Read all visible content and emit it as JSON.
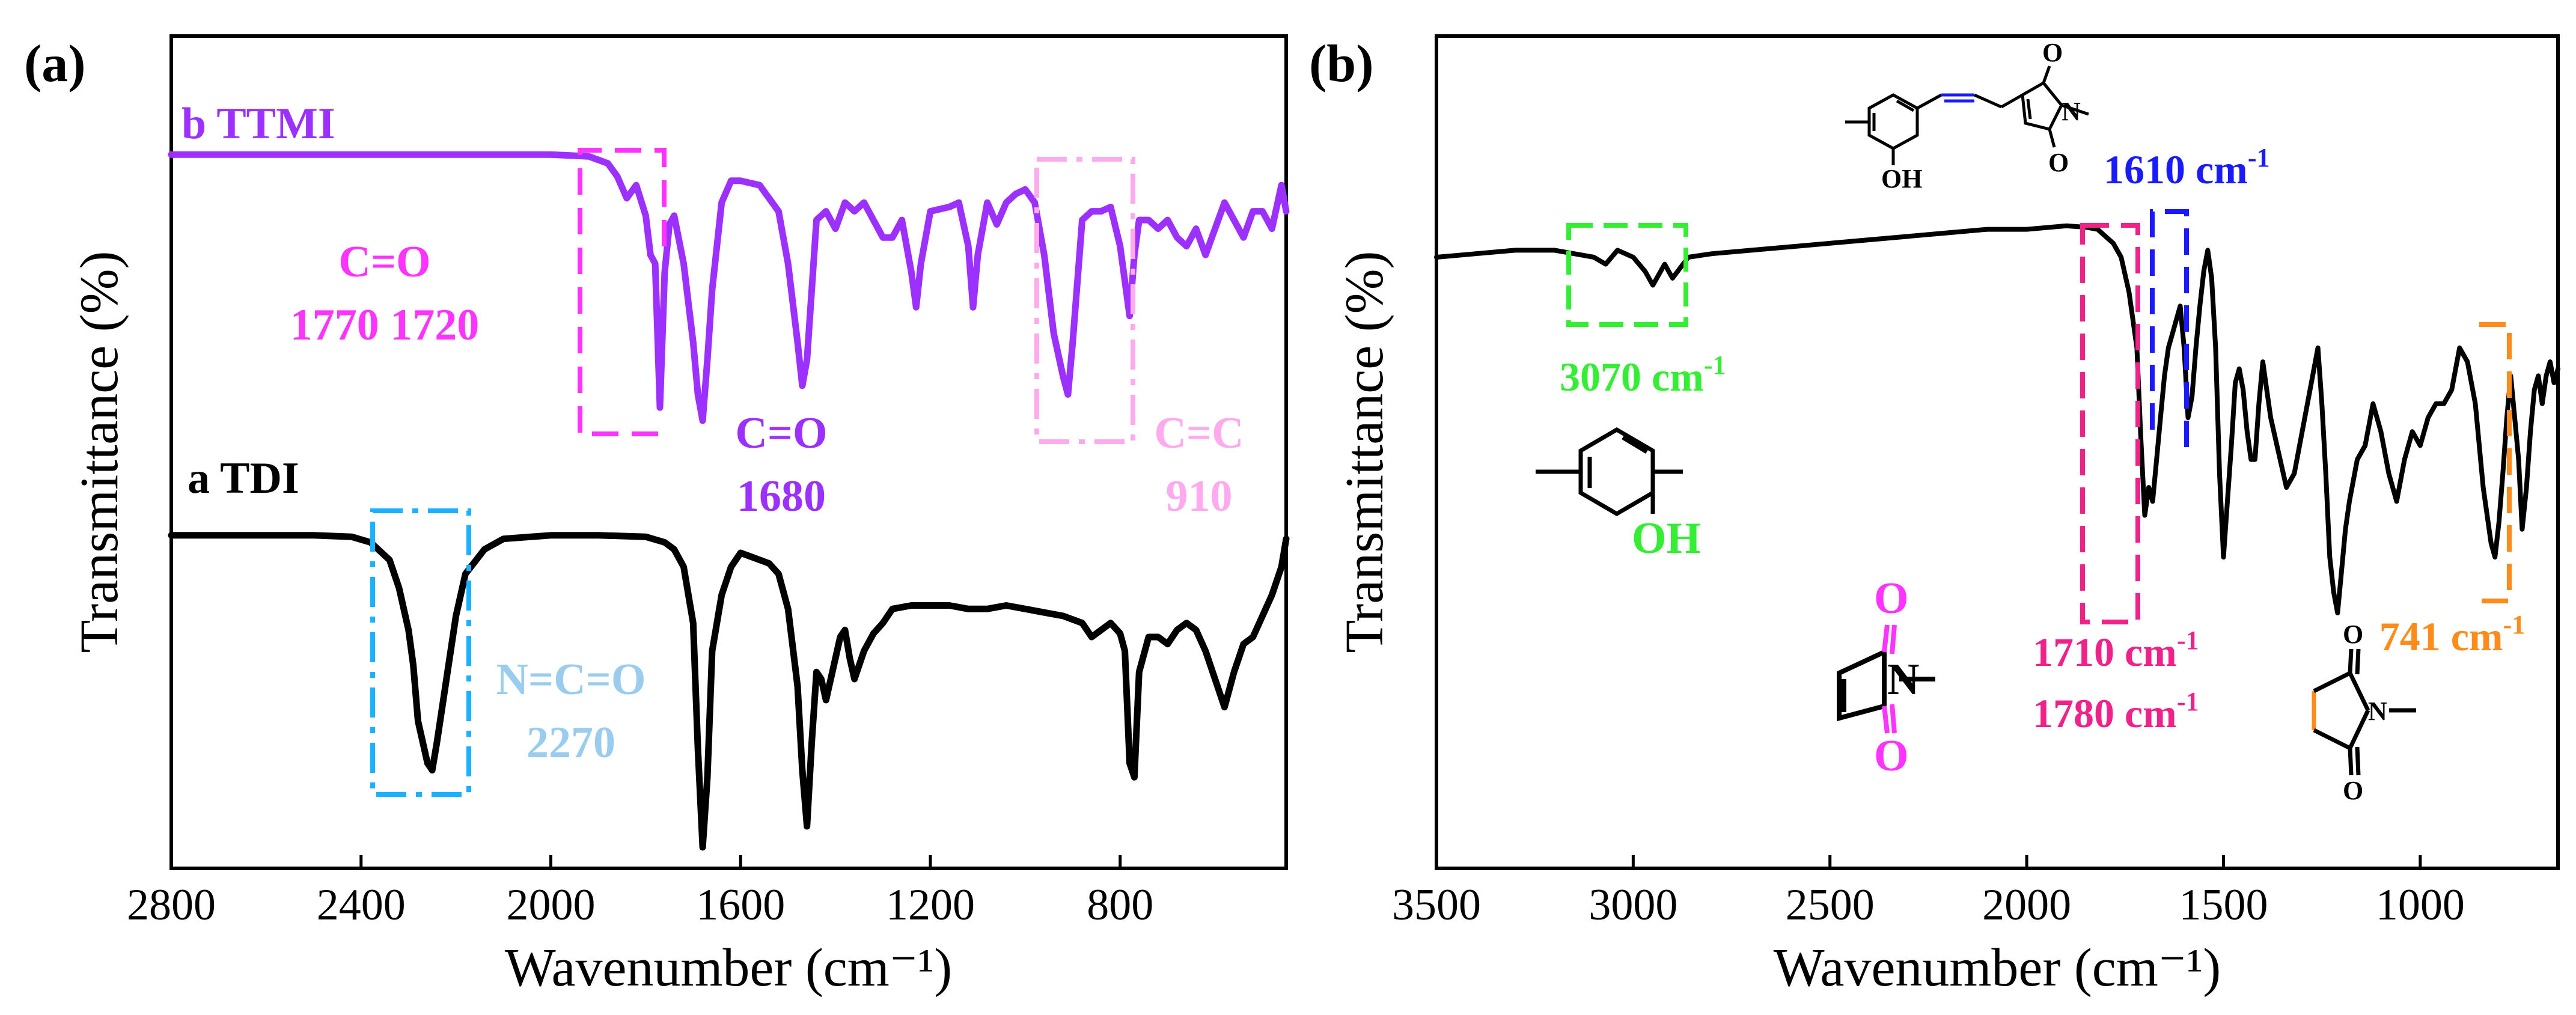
{
  "panels": {
    "a": {
      "label": "(a)",
      "ylabel": "Transmittance  (%)",
      "xlabel": "Wavenumber (cm⁻¹)"
    },
    "b": {
      "label": "(b)",
      "ylabel": "Transmittance  (%)",
      "xlabel": "Wavenumber (cm⁻¹)"
    }
  },
  "annotations_a": {
    "co_outer_1": "C=O",
    "co_outer_2": "1770 1720",
    "co_inner_1": "C=O",
    "co_inner_2": "1680",
    "cc_1": "C=C",
    "cc_2": "910",
    "nco_1": "N=C=O",
    "nco_2": "2270"
  },
  "annotations_b": {
    "peak_3070": "3070 cm",
    "peak_1610": "1610 cm",
    "peak_1710": "1710 cm",
    "peak_1780": "1780 cm",
    "peak_741": "741 cm",
    "superscript": "-1",
    "atom_o": "O",
    "atom_n": "N",
    "atom_oh": "OH"
  },
  "colors": {
    "ttmi": "#9b30ff",
    "tdi": "#000000",
    "magenta": "#ff33ff",
    "light_pink": "#ffaaee",
    "light_blue": "#99ccee",
    "cyan": "#1ab2ff",
    "green": "#33ee33",
    "blue": "#1a1aff",
    "hot_pink": "#ee2288",
    "orange": "#ff8c1a"
  },
  "chart_data": [
    {
      "type": "line",
      "panel": "a",
      "xlabel": "Wavenumber (cm⁻¹)",
      "ylabel": "Transmittance  (%)",
      "xlim": [
        2800,
        450
      ],
      "ylim": [
        0,
        100
      ],
      "xticks": [
        2800,
        2400,
        2000,
        1600,
        1200,
        800
      ],
      "series": [
        {
          "name": "b TTMI",
          "x": [
            2800,
            2000,
            1960,
            1920,
            1880,
            1860,
            1840,
            1820,
            1800,
            1790,
            1780,
            1770,
            1760,
            1750,
            1740,
            1720,
            1700,
            1690,
            1680,
            1670,
            1660,
            1640,
            1620,
            1600,
            1560,
            1520,
            1500,
            1480,
            1470,
            1460,
            1450,
            1440,
            1420,
            1400,
            1380,
            1360,
            1340,
            1300,
            1280,
            1260,
            1240,
            1230,
            1220,
            1200,
            1160,
            1140,
            1120,
            1110,
            1100,
            1080,
            1060,
            1040,
            1020,
            1000,
            980,
            960,
            940,
            920,
            910,
            900,
            880,
            860,
            840,
            820,
            800,
            790,
            780,
            770,
            760,
            740,
            720,
            700,
            680,
            660,
            640,
            620,
            600,
            580,
            560,
            540,
            520,
            500,
            480,
            460,
            450
          ],
          "values": [
            85.5,
            85.5,
            85.4,
            85.3,
            84.5,
            83,
            80.5,
            82,
            78.5,
            74,
            73,
            56.5,
            72,
            77.5,
            78.5,
            73,
            64,
            58,
            55,
            62,
            70,
            80,
            82.5,
            82.5,
            82,
            79,
            73,
            64,
            59,
            62,
            70,
            78,
            79,
            77,
            80,
            79,
            80,
            76,
            76,
            78,
            72,
            68,
            73,
            79,
            79.5,
            80,
            75,
            68,
            74,
            80,
            77.5,
            80,
            81,
            81.5,
            80,
            74,
            65,
            60,
            58,
            64,
            78,
            79,
            79,
            79.5,
            75,
            71,
            67,
            74,
            78,
            78,
            77,
            78,
            76,
            75,
            77,
            74,
            77,
            80,
            78,
            76,
            79,
            79,
            77,
            82,
            79
          ]
        },
        {
          "name": "a TDI",
          "x": [
            2800,
            2500,
            2420,
            2380,
            2340,
            2320,
            2300,
            2290,
            2280,
            2270,
            2260,
            2250,
            2240,
            2220,
            2200,
            2180,
            2140,
            2100,
            2000,
            1900,
            1800,
            1760,
            1740,
            1720,
            1700,
            1690,
            1680,
            1670,
            1660,
            1640,
            1620,
            1600,
            1580,
            1540,
            1520,
            1500,
            1480,
            1470,
            1460,
            1450,
            1440,
            1430,
            1420,
            1400,
            1390,
            1380,
            1370,
            1360,
            1340,
            1320,
            1300,
            1280,
            1240,
            1200,
            1160,
            1120,
            1080,
            1040,
            1000,
            960,
            920,
            880,
            860,
            840,
            820,
            800,
            790,
            780,
            770,
            760,
            740,
            720,
            700,
            680,
            660,
            640,
            620,
            600,
            580,
            560,
            540,
            520,
            500,
            480,
            460,
            450
          ],
          "values": [
            44.5,
            44.5,
            44.3,
            43.5,
            41,
            37,
            31,
            26,
            18,
            15,
            12,
            11,
            15,
            24,
            33,
            39,
            42.5,
            44,
            44.5,
            44.5,
            44.3,
            43.5,
            42.5,
            40,
            32,
            14,
            0,
            10,
            28,
            36,
            40,
            42,
            41.5,
            40.5,
            39,
            34,
            23,
            11,
            3,
            15,
            25,
            24,
            21,
            27,
            30,
            31,
            27,
            24,
            28,
            30.5,
            32,
            34,
            34.5,
            34.5,
            34.5,
            34,
            34,
            34.5,
            34,
            33.5,
            33,
            32,
            30,
            31,
            32,
            30.5,
            28,
            12,
            10,
            25,
            30,
            30,
            29,
            31,
            32,
            31,
            28,
            24,
            20,
            25,
            29,
            30,
            33,
            36,
            40,
            44
          ]
        }
      ]
    },
    {
      "type": "line",
      "panel": "b",
      "xlabel": "Wavenumber (cm⁻¹)",
      "ylabel": "Transmittance  (%)",
      "xlim": [
        3500,
        650
      ],
      "ylim": [
        0,
        100
      ],
      "xticks": [
        3500,
        3000,
        2500,
        2000,
        1500,
        1000
      ],
      "series": [
        {
          "name": "TTMI",
          "x": [
            3500,
            3400,
            3300,
            3200,
            3150,
            3100,
            3070,
            3040,
            3000,
            2970,
            2950,
            2920,
            2900,
            2860,
            2800,
            2700,
            2600,
            2500,
            2400,
            2300,
            2200,
            2100,
            2000,
            1900,
            1850,
            1820,
            1800,
            1780,
            1760,
            1740,
            1720,
            1710,
            1700,
            1690,
            1680,
            1670,
            1660,
            1650,
            1640,
            1630,
            1620,
            1610,
            1600,
            1590,
            1580,
            1570,
            1560,
            1550,
            1540,
            1530,
            1520,
            1510,
            1500,
            1490,
            1480,
            1470,
            1460,
            1450,
            1440,
            1430,
            1420,
            1410,
            1400,
            1380,
            1360,
            1340,
            1320,
            1300,
            1280,
            1260,
            1250,
            1240,
            1230,
            1220,
            1210,
            1200,
            1190,
            1180,
            1160,
            1140,
            1120,
            1100,
            1080,
            1060,
            1040,
            1020,
            1000,
            980,
            960,
            940,
            920,
            900,
            880,
            860,
            840,
            820,
            810,
            800,
            790,
            780,
            770,
            760,
            750,
            741,
            730,
            720,
            710,
            700,
            690,
            680,
            670,
            660,
            650
          ],
          "values": [
            73,
            73.5,
            74,
            74,
            73.5,
            73,
            72,
            74,
            73,
            71,
            69,
            72,
            70,
            73,
            73.5,
            74,
            74.5,
            75,
            75.5,
            76,
            76.5,
            77,
            77,
            77.5,
            77.3,
            77,
            76,
            75,
            73,
            68,
            60,
            47,
            36,
            40,
            38,
            44,
            50,
            56,
            60,
            62,
            64,
            66,
            60,
            50,
            53,
            60,
            66,
            71,
            74,
            70,
            60,
            42,
            30,
            38,
            46,
            55,
            57,
            54,
            48,
            44,
            44,
            52,
            58,
            50,
            45,
            40,
            42,
            48,
            54,
            60,
            52,
            42,
            30,
            25,
            22,
            28,
            34,
            38,
            44,
            46,
            52,
            48,
            42,
            38,
            44,
            48,
            46,
            50,
            52,
            52,
            54,
            60,
            58,
            52,
            40,
            32,
            30,
            35,
            42,
            50,
            56,
            50,
            44,
            34,
            40,
            48,
            54,
            56,
            52,
            56,
            58,
            55,
            57
          ]
        }
      ]
    }
  ]
}
